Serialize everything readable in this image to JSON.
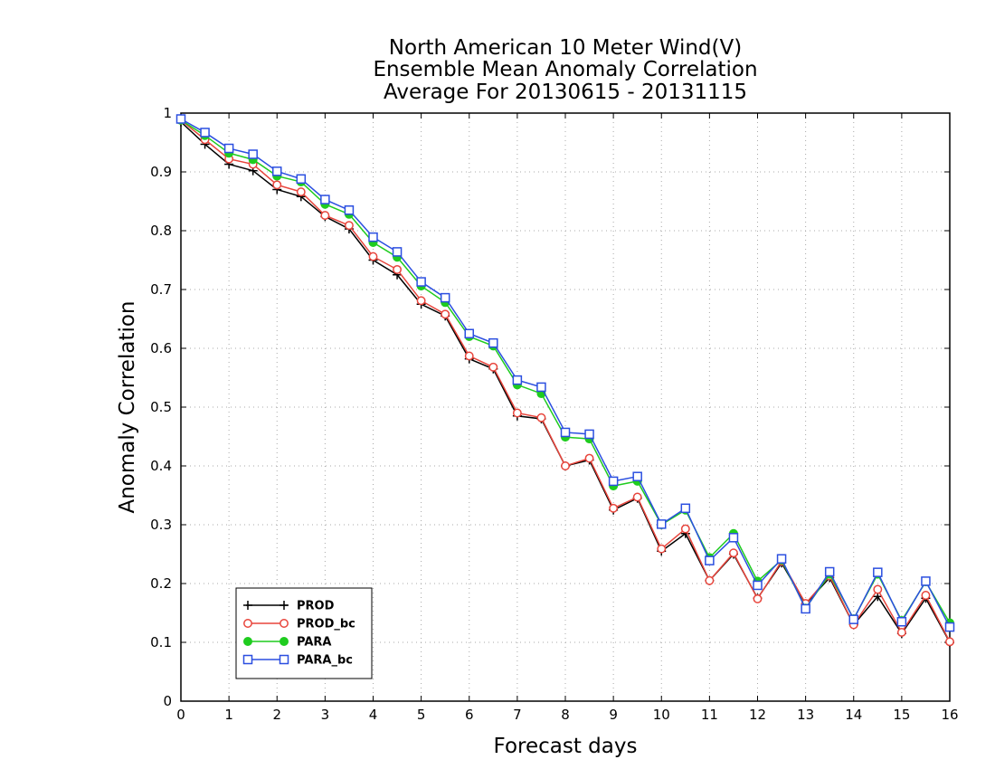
{
  "chart_data": {
    "type": "line",
    "title": [
      "North American 10 Meter Wind(V)",
      "Ensemble Mean Anomaly Correlation",
      "Average For 20130615 - 20131115"
    ],
    "xlabel": "Forecast days",
    "ylabel": "Anomaly Correlation",
    "xlim": [
      0,
      16
    ],
    "ylim": [
      0,
      1
    ],
    "xticks": [
      0,
      1,
      2,
      3,
      4,
      5,
      6,
      7,
      8,
      9,
      10,
      11,
      12,
      13,
      14,
      15,
      16
    ],
    "yticks": [
      0,
      0.1,
      0.2,
      0.3,
      0.4,
      0.5,
      0.6,
      0.7,
      0.8,
      0.9,
      1
    ],
    "grid": true,
    "legend_position": "bottom-left",
    "x": [
      0,
      0.5,
      1,
      1.5,
      2,
      2.5,
      3,
      3.5,
      4,
      4.5,
      5,
      5.5,
      6,
      6.5,
      7,
      7.5,
      8,
      8.5,
      9,
      9.5,
      10,
      10.5,
      11,
      11.5,
      12,
      12.5,
      13,
      13.5,
      14,
      14.5,
      15,
      15.5,
      16
    ],
    "series": [
      {
        "name": "PROD",
        "color": "#000000",
        "marker": "plus",
        "values": [
          0.985,
          0.947,
          0.913,
          0.902,
          0.87,
          0.858,
          0.824,
          0.803,
          0.75,
          0.725,
          0.675,
          0.655,
          0.582,
          0.565,
          0.485,
          0.48,
          0.4,
          0.41,
          0.325,
          0.345,
          0.255,
          0.285,
          0.205,
          0.25,
          0.175,
          0.235,
          0.165,
          0.21,
          0.13,
          0.178,
          0.115,
          0.175,
          0.1
        ]
      },
      {
        "name": "PROD_bc",
        "color": "#e8453c",
        "marker": "circle-open",
        "values": [
          0.988,
          0.955,
          0.922,
          0.913,
          0.878,
          0.866,
          0.826,
          0.809,
          0.756,
          0.734,
          0.681,
          0.658,
          0.587,
          0.568,
          0.49,
          0.482,
          0.4,
          0.413,
          0.328,
          0.347,
          0.259,
          0.293,
          0.205,
          0.252,
          0.174,
          0.238,
          0.166,
          0.213,
          0.13,
          0.19,
          0.117,
          0.18,
          0.101
        ]
      },
      {
        "name": "PARA",
        "color": "#1fcc1f",
        "marker": "circle-filled",
        "values": [
          0.988,
          0.962,
          0.932,
          0.921,
          0.893,
          0.883,
          0.845,
          0.828,
          0.78,
          0.755,
          0.706,
          0.678,
          0.62,
          0.604,
          0.538,
          0.523,
          0.449,
          0.446,
          0.366,
          0.374,
          0.3,
          0.325,
          0.244,
          0.285,
          0.204,
          0.24,
          0.158,
          0.216,
          0.14,
          0.216,
          0.137,
          0.203,
          0.133
        ]
      },
      {
        "name": "PARA_bc",
        "color": "#2b4fe0",
        "marker": "square-open",
        "values": [
          0.99,
          0.967,
          0.94,
          0.93,
          0.901,
          0.888,
          0.853,
          0.835,
          0.789,
          0.764,
          0.713,
          0.686,
          0.625,
          0.609,
          0.546,
          0.534,
          0.457,
          0.454,
          0.374,
          0.382,
          0.301,
          0.328,
          0.239,
          0.278,
          0.197,
          0.242,
          0.157,
          0.22,
          0.139,
          0.219,
          0.135,
          0.204,
          0.126
        ]
      }
    ]
  }
}
